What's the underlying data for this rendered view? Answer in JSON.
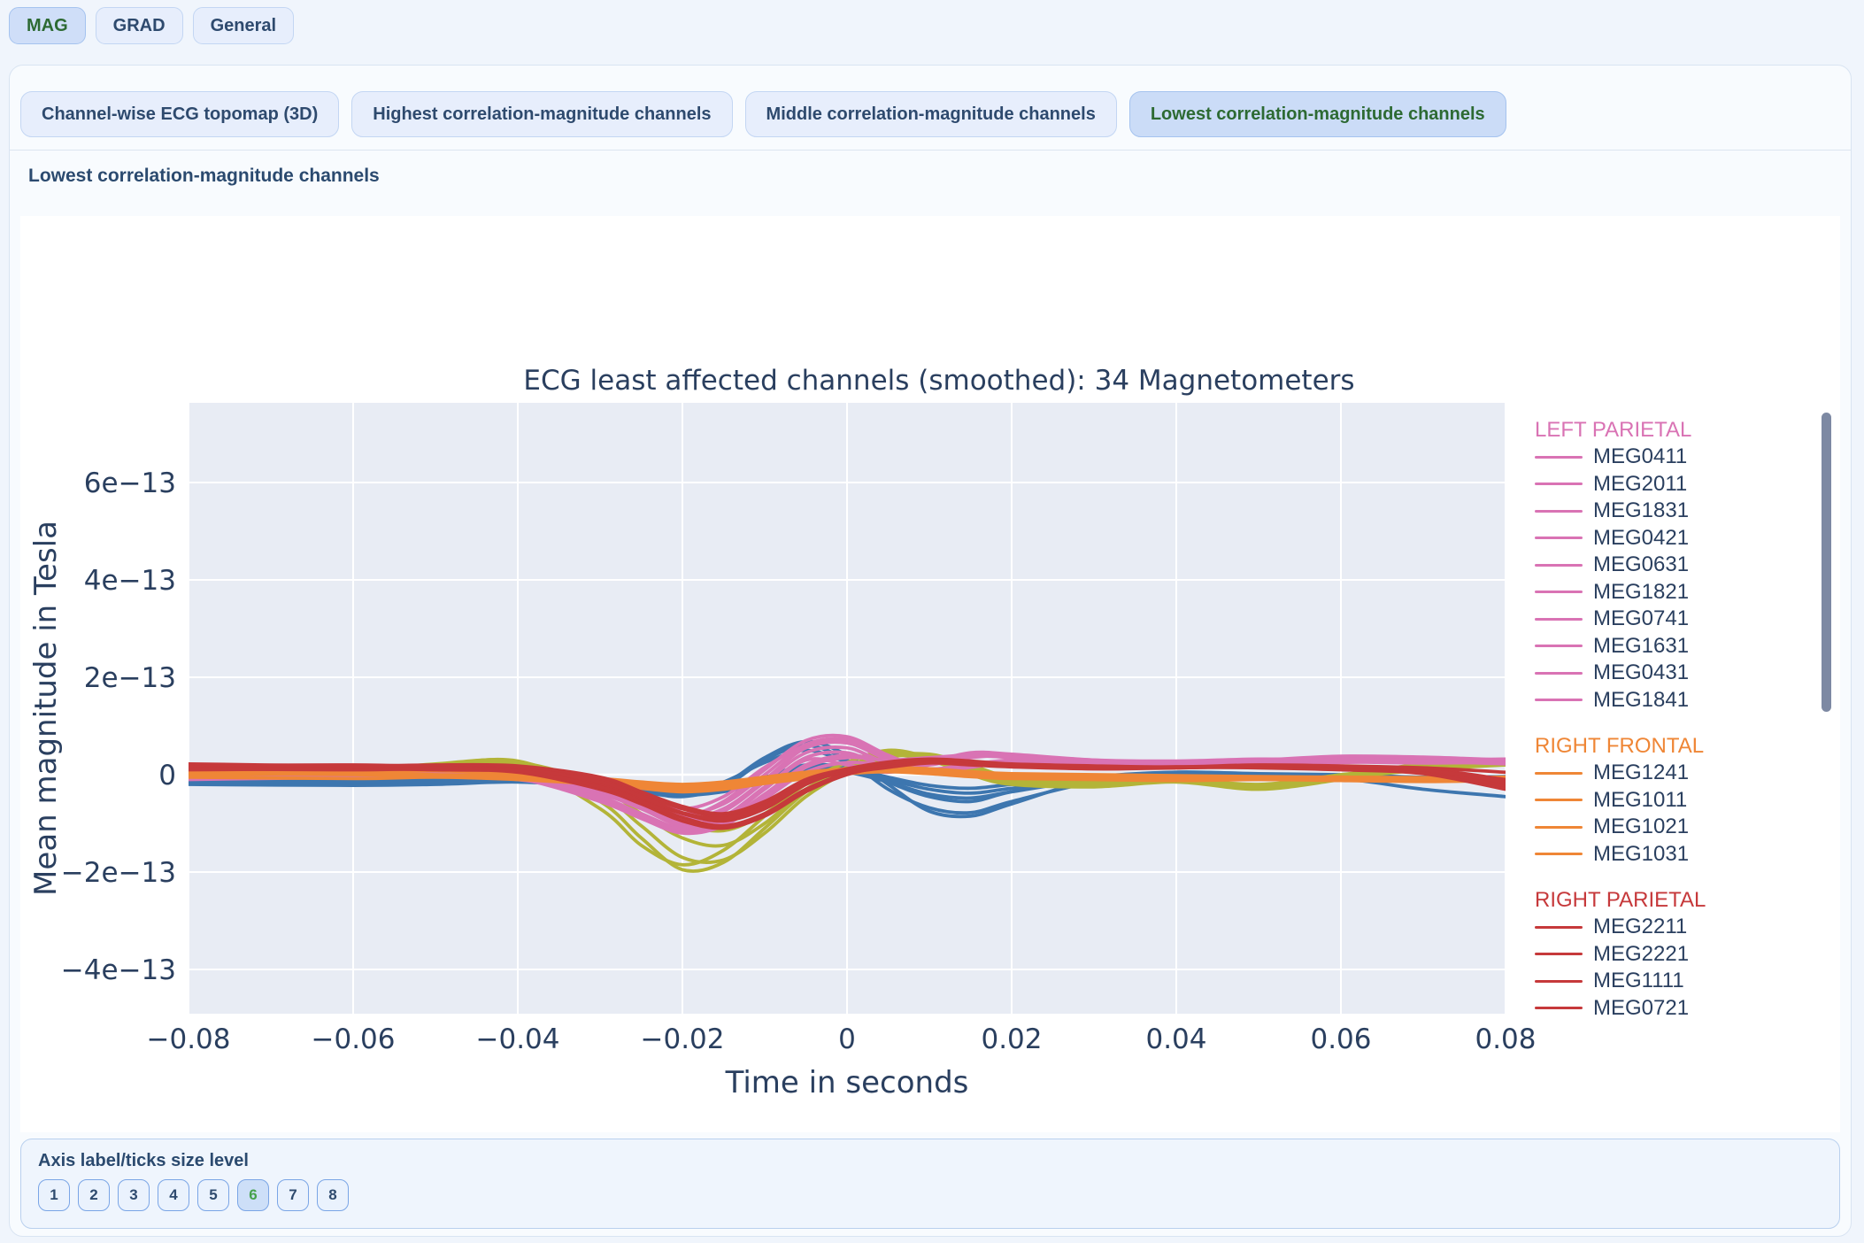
{
  "top_tabs": {
    "items": [
      {
        "label": "MAG",
        "active": true
      },
      {
        "label": "GRAD",
        "active": false
      },
      {
        "label": "General",
        "active": false
      }
    ]
  },
  "sub_tabs": {
    "items": [
      {
        "label": "Channel-wise ECG topomap (3D)",
        "active": false
      },
      {
        "label": "Highest correlation-magnitude channels",
        "active": false
      },
      {
        "label": "Middle correlation-magnitude channels",
        "active": false
      },
      {
        "label": "Lowest correlation-magnitude channels",
        "active": true
      }
    ]
  },
  "section": {
    "heading": "Lowest correlation-magnitude channels"
  },
  "controls": {
    "label": "Axis label/ticks size level",
    "levels": [
      "1",
      "2",
      "3",
      "4",
      "5",
      "6",
      "7",
      "8"
    ],
    "selected": "6"
  },
  "colors": {
    "pink": "#d973b4",
    "orange": "#ef8636",
    "red": "#c6393b",
    "blue": "#3d76af",
    "olive": "#b3b438",
    "plot_bg": "#e8ecf4",
    "grid": "#ffffff",
    "chart_text": "#2a3f5f",
    "scrollbar": "#7d89a3"
  },
  "chart_data": {
    "type": "line",
    "title": "ECG least affected channels (smoothed): 34 Magnetometers",
    "xlabel": "Time in seconds",
    "ylabel": "Mean magnitude in Tesla",
    "xlim": [
      -0.08,
      0.08
    ],
    "ylim_e13": [
      -4.9,
      7.6
    ],
    "grid": true,
    "y_unit": "1e-13 Tesla",
    "xtick_vals": [
      -0.08,
      -0.06,
      -0.04,
      -0.02,
      0,
      0.02,
      0.04,
      0.06,
      0.08
    ],
    "xtick_labels": [
      "−0.08",
      "−0.06",
      "−0.04",
      "−0.02",
      "0",
      "0.02",
      "0.04",
      "0.06",
      "0.08"
    ],
    "ytick_vals_e13": [
      6,
      4,
      2,
      0,
      -2,
      -4
    ],
    "ytick_labels": [
      "6e−13",
      "4e−13",
      "2e−13",
      "0",
      "−2e−13",
      "−4e−13"
    ],
    "legend": {
      "position": "right",
      "scrollbar": true,
      "groups": [
        {
          "label": "LEFT PARIETAL",
          "color": "#d973b4",
          "items": [
            "MEG0411",
            "MEG2011",
            "MEG1831",
            "MEG0421",
            "MEG0631",
            "MEG1821",
            "MEG0741",
            "MEG1631",
            "MEG0431",
            "MEG1841"
          ]
        },
        {
          "label": "RIGHT FRONTAL",
          "color": "#ef8636",
          "items": [
            "MEG1241",
            "MEG1011",
            "MEG1021",
            "MEG1031"
          ]
        },
        {
          "label": "RIGHT PARIETAL",
          "color": "#c6393b",
          "items": [
            "MEG2211",
            "MEG2221",
            "MEG1111",
            "MEG0721"
          ]
        }
      ]
    },
    "x": [
      -0.08,
      -0.06,
      -0.05,
      -0.04,
      -0.03,
      -0.025,
      -0.02,
      -0.015,
      -0.01,
      -0.005,
      0,
      0.005,
      0.01,
      0.015,
      0.02,
      0.03,
      0.04,
      0.05,
      0.06,
      0.07,
      0.08
    ],
    "series": [
      {
        "name": "",
        "group": "offscreen-blue",
        "color": "#3d76af",
        "legend_visible": false,
        "y_e13": [
          -0.15,
          -0.18,
          -0.15,
          -0.12,
          -0.2,
          -0.3,
          -0.4,
          -0.2,
          0.35,
          0.68,
          0.4,
          -0.2,
          -0.75,
          -0.85,
          -0.6,
          -0.1,
          0.05,
          0,
          -0.05,
          -0.1,
          -0.08
        ]
      },
      {
        "name": "",
        "group": "offscreen-blue",
        "color": "#3d76af",
        "legend_visible": false,
        "y_e13": [
          -0.2,
          -0.22,
          -0.2,
          -0.15,
          -0.25,
          -0.35,
          -0.45,
          -0.25,
          0.3,
          0.6,
          0.3,
          -0.3,
          -0.68,
          -0.78,
          -0.55,
          -0.15,
          0.02,
          -0.02,
          -0.08,
          -0.3,
          -0.45
        ]
      },
      {
        "name": "",
        "group": "offscreen-blue",
        "color": "#3d76af",
        "legend_visible": false,
        "y_e13": [
          -0.08,
          -0.1,
          -0.08,
          -0.05,
          -0.15,
          -0.25,
          -0.35,
          -0.15,
          0.25,
          0.5,
          0.25,
          -0.15,
          -0.45,
          -0.55,
          -0.35,
          -0.05,
          0.05,
          0.02,
          0,
          -0.05,
          -0.04
        ]
      },
      {
        "name": "",
        "group": "offscreen-blue",
        "color": "#3d76af",
        "legend_visible": false,
        "y_e13": [
          -0.12,
          -0.1,
          -0.12,
          -0.08,
          -0.18,
          -0.28,
          -0.38,
          -0.3,
          -0.1,
          0.15,
          0.1,
          -0.1,
          -0.3,
          -0.38,
          -0.28,
          -0.08,
          0,
          -0.02,
          -0.05,
          -0.08,
          -0.06
        ]
      },
      {
        "name": "",
        "group": "offscreen-blue",
        "color": "#3d76af",
        "legend_visible": false,
        "y_e13": [
          -0.05,
          -0.08,
          -0.06,
          -0.04,
          -0.12,
          -0.2,
          -0.3,
          -0.22,
          -0.05,
          0.2,
          0.15,
          -0.05,
          -0.22,
          -0.28,
          -0.2,
          -0.05,
          0.02,
          0,
          -0.04,
          -0.06,
          -0.05
        ]
      },
      {
        "name": "",
        "group": "offscreen-blue",
        "color": "#3d76af",
        "legend_visible": false,
        "y_e13": [
          -0.18,
          -0.15,
          -0.16,
          -0.12,
          -0.22,
          -0.32,
          -0.42,
          -0.35,
          -0.15,
          0.1,
          0.05,
          -0.15,
          -0.4,
          -0.48,
          -0.35,
          -0.1,
          -0.02,
          -0.05,
          -0.08,
          -0.12,
          -0.1
        ]
      },
      {
        "name": "",
        "group": "offscreen-olive",
        "color": "#b3b438",
        "legend_visible": false,
        "y_e13": [
          0.05,
          0.08,
          0.22,
          0.25,
          -0.55,
          -1.3,
          -1.95,
          -1.8,
          -1.1,
          -0.35,
          0.15,
          0.45,
          0.3,
          0,
          -0.2,
          -0.25,
          -0.15,
          -0.3,
          -0.1,
          0.15,
          0.25
        ]
      },
      {
        "name": "",
        "group": "offscreen-olive",
        "color": "#b3b438",
        "legend_visible": false,
        "y_e13": [
          0.1,
          0.12,
          0.2,
          0.28,
          -0.4,
          -1.05,
          -1.7,
          -1.75,
          -1.2,
          -0.45,
          0.05,
          0.35,
          0.4,
          0.15,
          -0.1,
          -0.2,
          -0.1,
          -0.25,
          -0.05,
          0.2,
          0.3
        ]
      },
      {
        "name": "",
        "group": "offscreen-olive",
        "color": "#b3b438",
        "legend_visible": false,
        "y_e13": [
          0,
          0.05,
          0.15,
          0.18,
          -0.7,
          -1.45,
          -1.85,
          -1.55,
          -0.85,
          -0.15,
          0.25,
          0.5,
          0.35,
          0.05,
          -0.15,
          -0.22,
          -0.12,
          -0.28,
          -0.08,
          0.1,
          0.2
        ]
      },
      {
        "name": "",
        "group": "offscreen-olive",
        "color": "#b3b438",
        "legend_visible": false,
        "y_e13": [
          0.08,
          0.1,
          0.18,
          0.22,
          -0.3,
          -0.8,
          -1.3,
          -1.45,
          -1.0,
          -0.3,
          0.1,
          0.38,
          0.42,
          0.2,
          -0.05,
          -0.18,
          -0.08,
          -0.2,
          0,
          0.18,
          0.28
        ]
      },
      {
        "name": "",
        "group": "offscreen-olive",
        "color": "#b3b438",
        "legend_visible": false,
        "y_e13": [
          0.12,
          0.1,
          0.16,
          0.25,
          -0.2,
          -0.6,
          -1.0,
          -1.15,
          -0.8,
          -0.2,
          0.15,
          0.4,
          0.3,
          0.1,
          -0.08,
          -0.15,
          -0.1,
          -0.22,
          -0.02,
          0.22,
          0.32
        ]
      },
      {
        "name": "MEG0411",
        "group": "LEFT PARIETAL",
        "color": "#d973b4",
        "legend_visible": true,
        "y_e13": [
          0.1,
          0.12,
          0.1,
          0.05,
          -0.35,
          -0.65,
          -0.95,
          -0.75,
          -0.15,
          0.45,
          0.55,
          0.25,
          0.3,
          0.42,
          0.4,
          0.3,
          0.28,
          0.32,
          0.3,
          0.28,
          0.3
        ]
      },
      {
        "name": "MEG2011",
        "group": "LEFT PARIETAL",
        "color": "#d973b4",
        "legend_visible": true,
        "y_e13": [
          0.05,
          0.08,
          0.05,
          0,
          -0.45,
          -0.8,
          -1.1,
          -0.9,
          -0.3,
          0.3,
          0.2,
          0.05,
          0.25,
          0.45,
          0.42,
          0.3,
          0.25,
          0.28,
          0.35,
          0.32,
          0.28
        ]
      },
      {
        "name": "MEG1831",
        "group": "LEFT PARIETAL",
        "color": "#d973b4",
        "legend_visible": true,
        "y_e13": [
          0.15,
          0.1,
          0.08,
          0.1,
          -0.25,
          -0.55,
          -0.85,
          -0.55,
          0.1,
          0.7,
          0.78,
          0.4,
          0.1,
          0.2,
          0.3,
          0.28,
          0.22,
          0.25,
          0.28,
          0.3,
          0.32
        ]
      },
      {
        "name": "MEG0421",
        "group": "LEFT PARIETAL",
        "color": "#d973b4",
        "legend_visible": true,
        "y_e13": [
          -0.05,
          0,
          0.02,
          -0.05,
          -0.5,
          -0.85,
          -1.15,
          -1.0,
          -0.45,
          0.15,
          0.35,
          0.3,
          0.35,
          0.4,
          0.35,
          0.25,
          0.22,
          0.2,
          0.25,
          0.28,
          0.25
        ]
      },
      {
        "name": "MEG0631",
        "group": "LEFT PARIETAL",
        "color": "#d973b4",
        "legend_visible": true,
        "y_e13": [
          0.08,
          0.05,
          0.08,
          0.02,
          -0.3,
          -0.6,
          -0.9,
          -0.7,
          -0.1,
          0.55,
          0.65,
          0.3,
          0.05,
          0.15,
          0.25,
          0.22,
          0.25,
          0.3,
          0.35,
          0.3,
          0.28
        ]
      },
      {
        "name": "MEG1821",
        "group": "LEFT PARIETAL",
        "color": "#d973b4",
        "legend_visible": true,
        "y_e13": [
          0,
          0.05,
          0,
          -0.08,
          -0.55,
          -0.9,
          -1.2,
          -1.05,
          -0.5,
          0.05,
          0.25,
          0.2,
          0.28,
          0.38,
          0.36,
          0.28,
          0.22,
          0.26,
          0.3,
          0.26,
          0.24
        ]
      },
      {
        "name": "MEG0741",
        "group": "LEFT PARIETAL",
        "color": "#d973b4",
        "legend_visible": true,
        "y_e13": [
          0.12,
          0.1,
          0.12,
          0.08,
          -0.2,
          -0.45,
          -0.7,
          -0.45,
          0.15,
          0.6,
          0.68,
          0.35,
          0.12,
          0.22,
          0.28,
          0.25,
          0.2,
          0.24,
          0.3,
          0.34,
          0.3
        ]
      },
      {
        "name": "MEG1631",
        "group": "LEFT PARIETAL",
        "color": "#d973b4",
        "legend_visible": true,
        "y_e13": [
          -0.1,
          -0.05,
          -0.02,
          -0.1,
          -0.4,
          -0.7,
          -1.0,
          -0.85,
          -0.25,
          0.35,
          0.45,
          0.15,
          0.2,
          0.35,
          0.38,
          0.26,
          0.24,
          0.22,
          0.26,
          0.24,
          0.26
        ]
      },
      {
        "name": "MEG0431",
        "group": "LEFT PARIETAL",
        "color": "#d973b4",
        "legend_visible": true,
        "y_e13": [
          0.05,
          0.02,
          0.05,
          0,
          -0.35,
          -0.7,
          -1.05,
          -0.95,
          -0.4,
          0.2,
          0.4,
          0.28,
          0.32,
          0.4,
          0.36,
          0.24,
          0.2,
          0.26,
          0.32,
          0.28,
          0.22
        ]
      },
      {
        "name": "MEG1841",
        "group": "LEFT PARIETAL",
        "color": "#d973b4",
        "legend_visible": true,
        "y_e13": [
          0.1,
          0.08,
          0.06,
          0.04,
          -0.28,
          -0.52,
          -0.8,
          -0.6,
          0,
          0.62,
          0.72,
          0.38,
          0.08,
          0.18,
          0.26,
          0.24,
          0.26,
          0.3,
          0.38,
          0.36,
          0.3
        ]
      },
      {
        "name": "MEG1241",
        "group": "RIGHT FRONTAL",
        "color": "#ef8636",
        "legend_visible": true,
        "y_e13": [
          0.02,
          0,
          -0.02,
          -0.05,
          -0.15,
          -0.22,
          -0.3,
          -0.25,
          -0.12,
          -0.02,
          0.08,
          0.12,
          0.08,
          0.02,
          -0.02,
          -0.05,
          -0.08,
          -0.06,
          -0.08,
          -0.1,
          -0.08
        ]
      },
      {
        "name": "MEG1011",
        "group": "RIGHT FRONTAL",
        "color": "#ef8636",
        "legend_visible": true,
        "y_e13": [
          -0.05,
          -0.08,
          -0.05,
          -0.1,
          -0.2,
          -0.28,
          -0.35,
          -0.3,
          -0.18,
          -0.08,
          0.02,
          0.06,
          0.02,
          -0.04,
          -0.08,
          -0.1,
          -0.12,
          -0.1,
          -0.12,
          -0.14,
          -0.12
        ]
      },
      {
        "name": "MEG1021",
        "group": "RIGHT FRONTAL",
        "color": "#ef8636",
        "legend_visible": true,
        "y_e13": [
          0.08,
          0.05,
          0.08,
          0.02,
          -0.08,
          -0.15,
          -0.2,
          -0.15,
          -0.05,
          0.05,
          0.12,
          0.15,
          0.12,
          0.06,
          0.02,
          0,
          -0.02,
          -0.04,
          -0.05,
          -0.06,
          -0.05
        ]
      },
      {
        "name": "MEG1031",
        "group": "RIGHT FRONTAL",
        "color": "#ef8636",
        "legend_visible": true,
        "y_e13": [
          0,
          0.02,
          0,
          -0.02,
          -0.12,
          -0.18,
          -0.25,
          -0.2,
          -0.1,
          0,
          0.06,
          0.1,
          0.05,
          0,
          -0.04,
          -0.06,
          -0.08,
          -0.08,
          -0.1,
          -0.12,
          -0.1
        ]
      },
      {
        "name": "MEG2211",
        "group": "RIGHT PARIETAL",
        "color": "#c6393b",
        "legend_visible": true,
        "y_e13": [
          0.15,
          0.18,
          0.15,
          0.1,
          -0.2,
          -0.5,
          -0.8,
          -0.95,
          -0.7,
          -0.2,
          0.1,
          0.25,
          0.3,
          0.25,
          0.2,
          0.15,
          0.15,
          0.18,
          0.15,
          0.12,
          -0.1
        ]
      },
      {
        "name": "MEG2221",
        "group": "RIGHT PARIETAL",
        "color": "#c6393b",
        "legend_visible": true,
        "y_e13": [
          0.2,
          0.15,
          0.18,
          0.15,
          -0.1,
          -0.4,
          -0.7,
          -0.85,
          -0.6,
          -0.15,
          0.05,
          0.2,
          0.28,
          0.22,
          0.18,
          0.14,
          0.16,
          0.15,
          0.12,
          0.05,
          -0.2
        ]
      },
      {
        "name": "MEG1111",
        "group": "RIGHT PARIETAL",
        "color": "#c6393b",
        "legend_visible": true,
        "y_e13": [
          0.1,
          0.12,
          0.1,
          0.05,
          -0.3,
          -0.6,
          -0.95,
          -1.1,
          -0.85,
          -0.35,
          0,
          0.18,
          0.26,
          0.24,
          0.18,
          0.12,
          0.14,
          0.16,
          0.14,
          0.08,
          -0.25
        ]
      },
      {
        "name": "MEG0721",
        "group": "RIGHT PARIETAL",
        "color": "#c6393b",
        "legend_visible": true,
        "y_e13": [
          0.18,
          0.2,
          0.16,
          0.12,
          -0.15,
          -0.45,
          -0.78,
          -0.9,
          -0.65,
          -0.18,
          0.08,
          0.22,
          0.3,
          0.26,
          0.2,
          0.16,
          0.14,
          0.18,
          0.16,
          0.1,
          -0.15
        ]
      },
      {
        "name": "",
        "group": "offscreen-red",
        "color": "#c6393b",
        "legend_visible": false,
        "y_e13": [
          0.12,
          0.1,
          0.12,
          0.08,
          -0.25,
          -0.55,
          -0.88,
          -1.05,
          -0.8,
          -0.3,
          0.02,
          0.15,
          0.24,
          0.2,
          0.16,
          0.12,
          0.15,
          0.14,
          0.1,
          0.02,
          -0.3
        ]
      },
      {
        "name": "",
        "group": "offscreen-red",
        "color": "#c6393b",
        "legend_visible": false,
        "y_e13": [
          0.22,
          0.18,
          0.2,
          0.18,
          -0.05,
          -0.35,
          -0.65,
          -0.8,
          -0.55,
          -0.1,
          0.12,
          0.26,
          0.32,
          0.28,
          0.22,
          0.18,
          0.16,
          0.2,
          0.18,
          0.14,
          0.05
        ]
      }
    ]
  }
}
